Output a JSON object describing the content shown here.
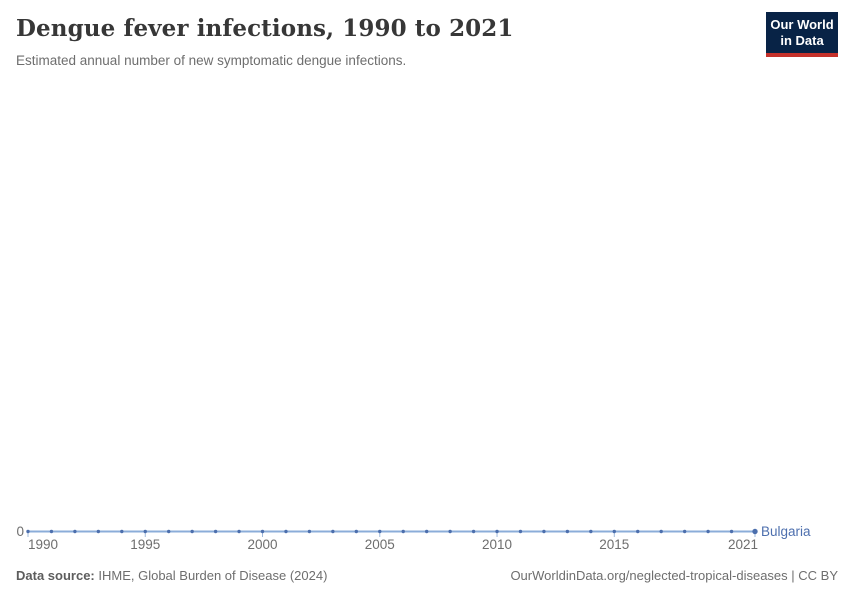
{
  "header": {
    "title": "Dengue fever infections, 1990 to 2021",
    "subtitle": "Estimated annual number of new symptomatic dengue infections."
  },
  "logo": {
    "line1": "Our World",
    "line2": "in Data"
  },
  "axes": {
    "y_zero_label": "0"
  },
  "footer": {
    "source_label": "Data source:",
    "source_value": " IHME, Global Burden of Disease (2024)",
    "attribution": "OurWorldinData.org/neglected-tropical-diseases | CC BY"
  },
  "colors": {
    "line": "#8badd9",
    "marker": "#4c6fad",
    "tick": "#9fb9da",
    "entity_label": "#4d6fae",
    "logo_bg": "#082346",
    "logo_red": "#c5312b"
  },
  "chart_data": {
    "type": "line",
    "title": "Dengue fever infections, 1990 to 2021",
    "subtitle": "Estimated annual number of new symptomatic dengue infections.",
    "xlabel": "",
    "ylabel": "",
    "x": [
      1990,
      1991,
      1992,
      1993,
      1994,
      1995,
      1996,
      1997,
      1998,
      1999,
      2000,
      2001,
      2002,
      2003,
      2004,
      2005,
      2006,
      2007,
      2008,
      2009,
      2010,
      2011,
      2012,
      2013,
      2014,
      2015,
      2016,
      2017,
      2018,
      2019,
      2020,
      2021
    ],
    "series": [
      {
        "name": "Bulgaria",
        "values": [
          0,
          0,
          0,
          0,
          0,
          0,
          0,
          0,
          0,
          0,
          0,
          0,
          0,
          0,
          0,
          0,
          0,
          0,
          0,
          0,
          0,
          0,
          0,
          0,
          0,
          0,
          0,
          0,
          0,
          0,
          0,
          0
        ]
      }
    ],
    "x_axis_ticks": [
      1990,
      1995,
      2000,
      2005,
      2010,
      2015,
      2021
    ],
    "y_axis_ticks": [
      "0"
    ],
    "xlim": [
      1990,
      2021
    ],
    "grid": false,
    "legend_position": "end-of-line"
  }
}
